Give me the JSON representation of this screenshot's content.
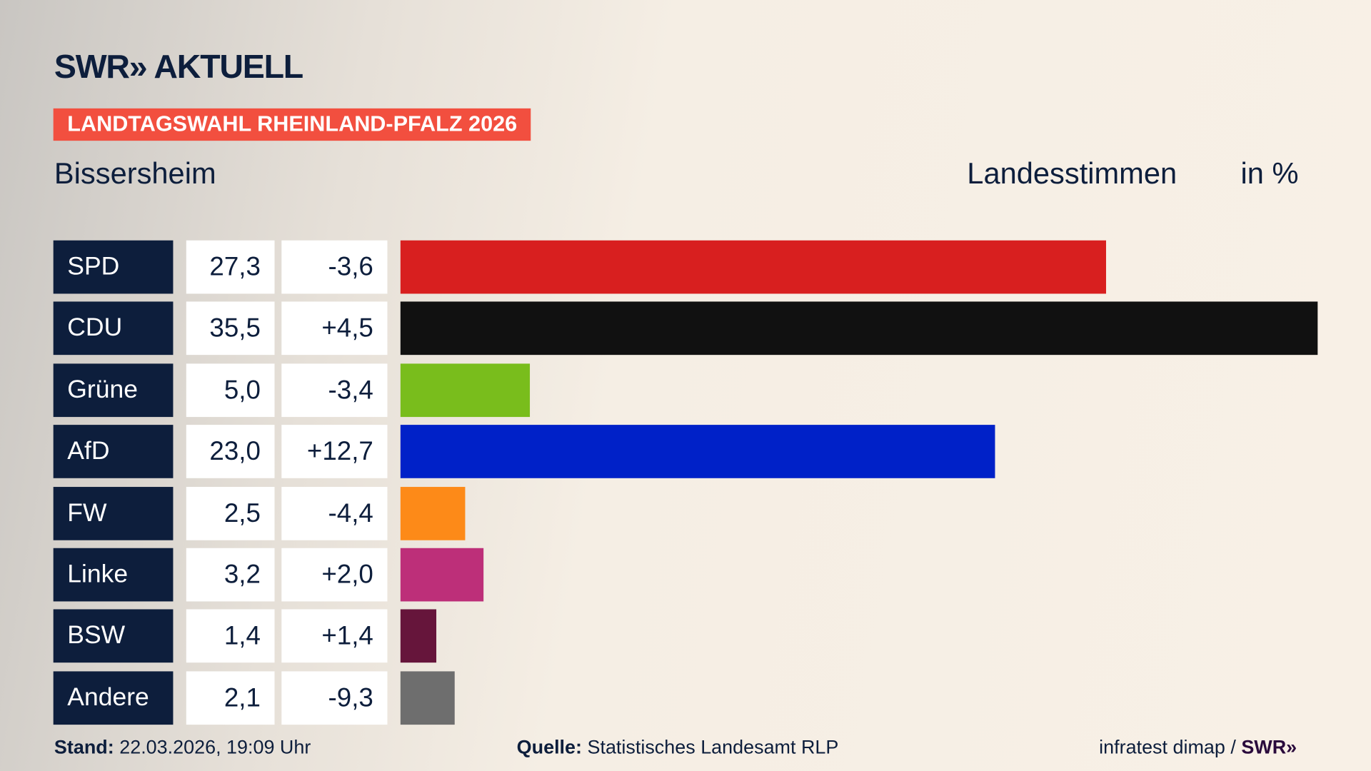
{
  "header": {
    "logo": "SWR» AKTUELL",
    "badge": "LANDTAGSWAHL RHEINLAND-PFALZ 2026",
    "place": "Bissersheim",
    "measure": "Landesstimmen",
    "unit": "in %"
  },
  "chart_data": {
    "type": "bar",
    "orientation": "horizontal",
    "categories": [
      "SPD",
      "CDU",
      "Grüne",
      "AfD",
      "FW",
      "Linke",
      "BSW",
      "Andere"
    ],
    "values": [
      27.3,
      35.5,
      5.0,
      23.0,
      2.5,
      3.2,
      1.4,
      2.1
    ],
    "values_label": [
      "27,3",
      "35,5",
      "5,0",
      "23,0",
      "2,5",
      "3,2",
      "1,4",
      "2,1"
    ],
    "diff_label": [
      "-3,6",
      "+4,5",
      "-3,4",
      "+12,7",
      "-4,4",
      "+2,0",
      "+1,4",
      "-9,3"
    ],
    "colors": [
      "#d81f1f",
      "#111111",
      "#79bd1c",
      "#0021c8",
      "#fd8a18",
      "#bd2f79",
      "#66153b",
      "#6e6e6e"
    ],
    "xlim": [
      0,
      35.5
    ],
    "title": "Landesstimmen",
    "unit": "in %"
  },
  "footer": {
    "stand_label": "Stand:",
    "stand": "22.03.2026, 19:09 Uhr",
    "source_label": "Quelle:",
    "source": "Statistisches Landesamt RLP",
    "credit": "infratest dimap /",
    "credit_logo": "SWR»"
  }
}
